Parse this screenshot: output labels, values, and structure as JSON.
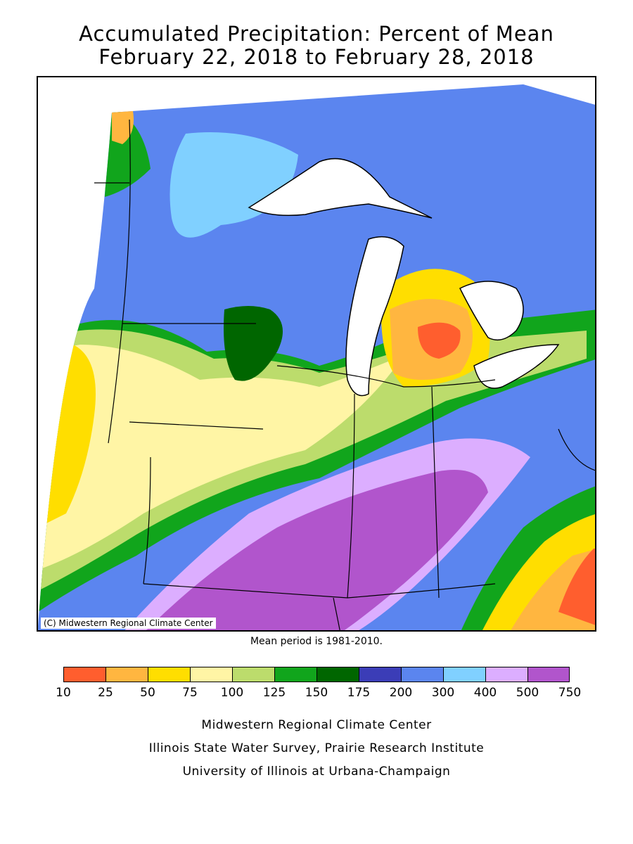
{
  "title": {
    "line1": "Accumulated Precipitation: Percent of Mean",
    "line2": "February 22, 2018 to February 28, 2018"
  },
  "map": {
    "copyright": "(C) Midwestern Regional Climate Center",
    "mean_note": "Mean period is 1981-2010."
  },
  "legend": {
    "bins": [
      {
        "from": 10,
        "to": 25,
        "color": "#ff5e2e"
      },
      {
        "from": 25,
        "to": 50,
        "color": "#ffb640"
      },
      {
        "from": 50,
        "to": 75,
        "color": "#ffde00"
      },
      {
        "from": 75,
        "to": 100,
        "color": "#fff5a5"
      },
      {
        "from": 100,
        "to": 125,
        "color": "#bcdc6c"
      },
      {
        "from": 125,
        "to": 150,
        "color": "#11a51c"
      },
      {
        "from": 150,
        "to": 175,
        "color": "#006600"
      },
      {
        "from": 175,
        "to": 200,
        "color": "#3b3db7"
      },
      {
        "from": 200,
        "to": 300,
        "color": "#5b85ef"
      },
      {
        "from": 300,
        "to": 400,
        "color": "#80d0ff"
      },
      {
        "from": 400,
        "to": 500,
        "color": "#dcaeff"
      },
      {
        "from": 500,
        "to": 750,
        "color": "#b155cc"
      }
    ],
    "ticks": [
      "10",
      "25",
      "50",
      "75",
      "100",
      "125",
      "150",
      "175",
      "200",
      "300",
      "400",
      "500",
      "750"
    ]
  },
  "footer": {
    "line1": "Midwestern Regional Climate Center",
    "line2": "Illinois State Water Survey, Prairie Research Institute",
    "line3": "University of Illinois at Urbana-Champaign"
  }
}
